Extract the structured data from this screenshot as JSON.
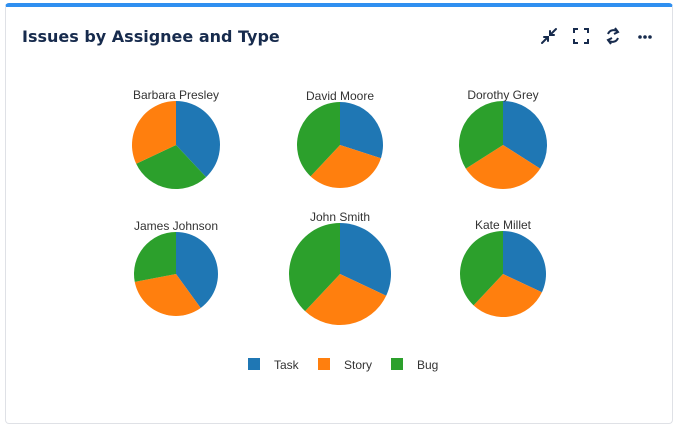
{
  "widget": {
    "title": "Issues by Assignee and Type",
    "toolbar": [
      {
        "name": "collapse-icon"
      },
      {
        "name": "fullscreen-icon"
      },
      {
        "name": "refresh-icon"
      },
      {
        "name": "more-icon"
      }
    ]
  },
  "chart_data": {
    "type": "pie",
    "title": "",
    "legend_placement": "bottom",
    "legend": [
      "Task",
      "Story",
      "Bug"
    ],
    "colors": {
      "Task": "#1f77b4",
      "Story": "#ff7f0e",
      "Bug": "#2ca02c"
    },
    "pies": [
      {
        "label": "Barbara Presley",
        "slices": [
          {
            "name": "Task",
            "value": 38
          },
          {
            "name": "Bug",
            "value": 30
          },
          {
            "name": "Story",
            "value": 32
          }
        ]
      },
      {
        "label": "David Moore",
        "slices": [
          {
            "name": "Task",
            "value": 30
          },
          {
            "name": "Story",
            "value": 32
          },
          {
            "name": "Bug",
            "value": 38
          }
        ]
      },
      {
        "label": "Dorothy Grey",
        "slices": [
          {
            "name": "Task",
            "value": 34
          },
          {
            "name": "Story",
            "value": 32
          },
          {
            "name": "Bug",
            "value": 34
          }
        ]
      },
      {
        "label": "James Johnson",
        "slices": [
          {
            "name": "Task",
            "value": 40
          },
          {
            "name": "Story",
            "value": 32
          },
          {
            "name": "Bug",
            "value": 28
          }
        ]
      },
      {
        "label": "John Smith",
        "slices": [
          {
            "name": "Task",
            "value": 32
          },
          {
            "name": "Story",
            "value": 30
          },
          {
            "name": "Bug",
            "value": 38
          }
        ]
      },
      {
        "label": "Kate Millet",
        "slices": [
          {
            "name": "Task",
            "value": 32
          },
          {
            "name": "Story",
            "value": 30
          },
          {
            "name": "Bug",
            "value": 38
          }
        ]
      }
    ]
  }
}
